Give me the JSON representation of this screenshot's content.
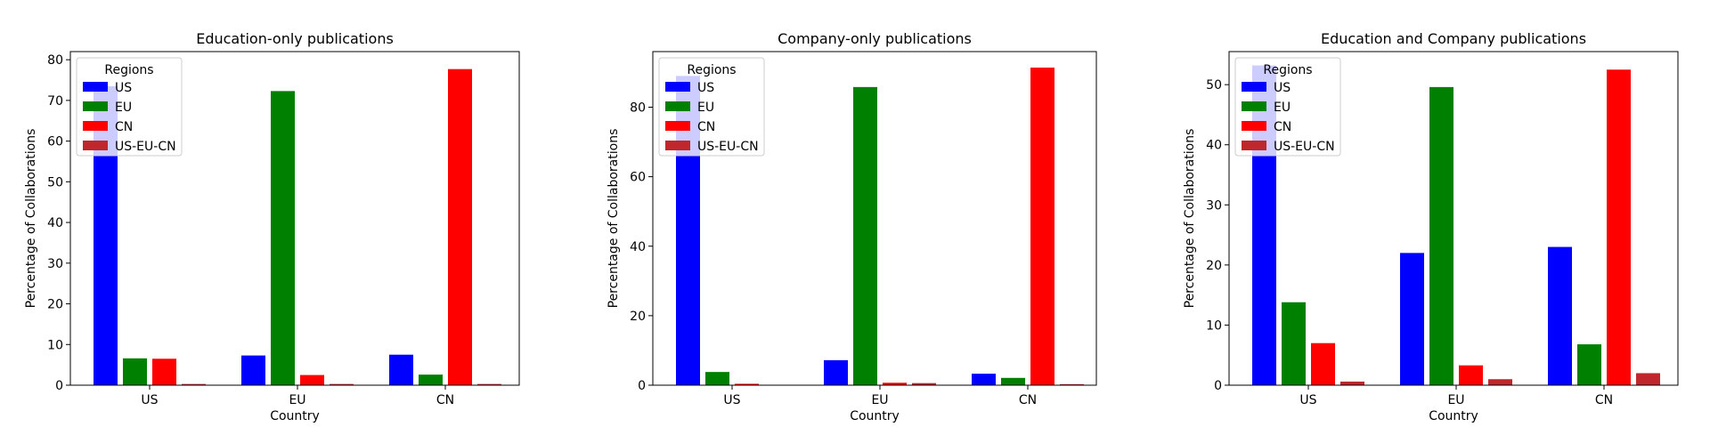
{
  "chart_data": [
    {
      "type": "bar",
      "title": "Education-only publications",
      "xlabel": "Country",
      "ylabel": "Percentage of Collaborations",
      "categories": [
        "US",
        "EU",
        "CN"
      ],
      "ylim": [
        0,
        82
      ],
      "yticks": [
        0,
        10,
        20,
        30,
        40,
        50,
        60,
        70,
        80
      ],
      "legend": {
        "title": "Regions",
        "placement": "top-left"
      },
      "series": [
        {
          "name": "US",
          "color": "#0000ff",
          "values": [
            73.5,
            7.3,
            7.5
          ]
        },
        {
          "name": "EU",
          "color": "#008000",
          "values": [
            6.6,
            72.3,
            2.6
          ]
        },
        {
          "name": "CN",
          "color": "#ff0000",
          "values": [
            6.5,
            2.5,
            77.7
          ]
        },
        {
          "name": "US-EU-CN",
          "color": "#c0272d",
          "values": [
            0.3,
            0.3,
            0.3
          ]
        }
      ]
    },
    {
      "type": "bar",
      "title": "Company-only publications",
      "xlabel": "Country",
      "ylabel": "Percentage of Collaborations",
      "categories": [
        "US",
        "EU",
        "CN"
      ],
      "ylim": [
        0,
        96
      ],
      "yticks": [
        0,
        20,
        40,
        60,
        80
      ],
      "legend": {
        "title": "Regions",
        "placement": "top-left"
      },
      "series": [
        {
          "name": "US",
          "color": "#0000ff",
          "values": [
            89.0,
            7.2,
            3.3
          ]
        },
        {
          "name": "EU",
          "color": "#008000",
          "values": [
            3.8,
            85.8,
            2.1
          ]
        },
        {
          "name": "CN",
          "color": "#ff0000",
          "values": [
            0.4,
            0.7,
            91.4
          ]
        },
        {
          "name": "US-EU-CN",
          "color": "#c0272d",
          "values": [
            0.1,
            0.6,
            0.3
          ]
        }
      ]
    },
    {
      "type": "bar",
      "title": "Education and Company publications",
      "xlabel": "Country",
      "ylabel": "Percentage of Collaborations",
      "categories": [
        "US",
        "EU",
        "CN"
      ],
      "ylim": [
        0,
        55.5
      ],
      "yticks": [
        0,
        10,
        20,
        30,
        40,
        50
      ],
      "legend": {
        "title": "Regions",
        "placement": "top-left"
      },
      "series": [
        {
          "name": "US",
          "color": "#0000ff",
          "values": [
            53.2,
            22.0,
            23.0
          ]
        },
        {
          "name": "EU",
          "color": "#008000",
          "values": [
            13.8,
            49.6,
            6.8
          ]
        },
        {
          "name": "CN",
          "color": "#ff0000",
          "values": [
            7.0,
            3.3,
            52.5
          ]
        },
        {
          "name": "US-EU-CN",
          "color": "#c0272d",
          "values": [
            0.6,
            1.0,
            2.0
          ]
        }
      ]
    }
  ]
}
